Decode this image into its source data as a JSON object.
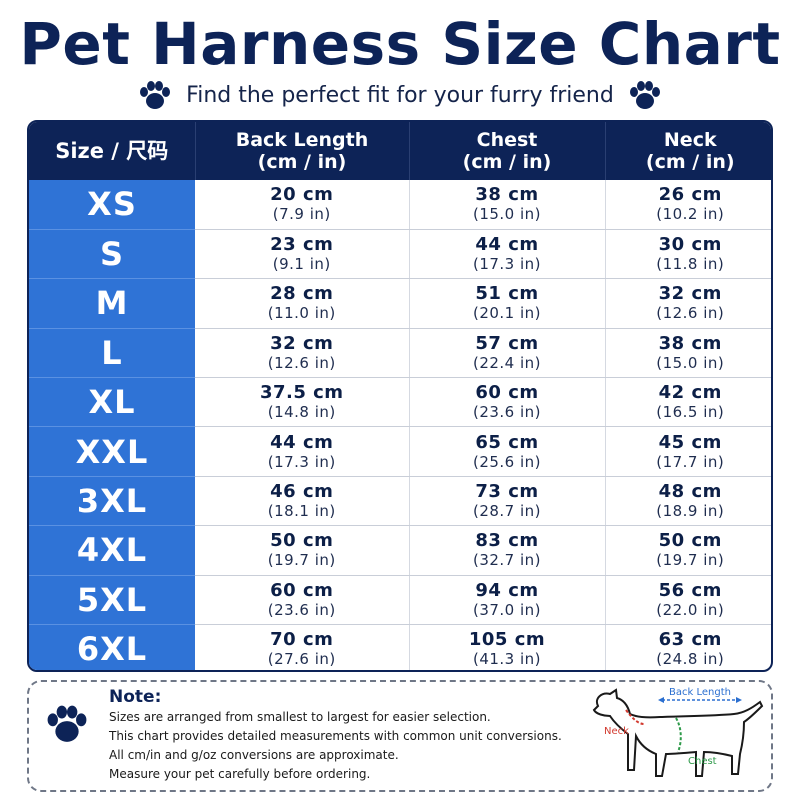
{
  "header": {
    "title": "Pet Harness Size Chart",
    "subtitle": "Find the perfect fit for your furry friend",
    "icon": "paw-icon"
  },
  "table": {
    "columns": [
      "Size / 尺码",
      "Back Length\n(cm / in)",
      "Chest\n(cm / in)",
      "Neck\n(cm / in)"
    ],
    "col_back": "Back Length",
    "col_chest": "Chest",
    "col_neck": "Neck",
    "col_unit": "(cm / in)",
    "col_size": "Size / 尺码",
    "rows": [
      {
        "size": "XS",
        "back_cm": "20 cm",
        "back_in": "(7.9 in)",
        "chest_cm": "38 cm",
        "chest_in": "(15.0 in)",
        "neck_cm": "26 cm",
        "neck_in": "(10.2 in)"
      },
      {
        "size": "S",
        "back_cm": "23 cm",
        "back_in": "(9.1 in)",
        "chest_cm": "44 cm",
        "chest_in": "(17.3 in)",
        "neck_cm": "30 cm",
        "neck_in": "(11.8 in)"
      },
      {
        "size": "M",
        "back_cm": "28 cm",
        "back_in": "(11.0 in)",
        "chest_cm": "51 cm",
        "chest_in": "(20.1 in)",
        "neck_cm": "32 cm",
        "neck_in": "(12.6 in)"
      },
      {
        "size": "L",
        "back_cm": "32 cm",
        "back_in": "(12.6 in)",
        "chest_cm": "57 cm",
        "chest_in": "(22.4 in)",
        "neck_cm": "38 cm",
        "neck_in": "(15.0 in)"
      },
      {
        "size": "XL",
        "back_cm": "37.5 cm",
        "back_in": "(14.8 in)",
        "chest_cm": "60 cm",
        "chest_in": "(23.6 in)",
        "neck_cm": "42 cm",
        "neck_in": "(16.5 in)"
      },
      {
        "size": "XXL",
        "back_cm": "44 cm",
        "back_in": "(17.3 in)",
        "chest_cm": "65 cm",
        "chest_in": "(25.6 in)",
        "neck_cm": "45 cm",
        "neck_in": "(17.7 in)"
      },
      {
        "size": "3XL",
        "back_cm": "46 cm",
        "back_in": "(18.1 in)",
        "chest_cm": "73 cm",
        "chest_in": "(28.7 in)",
        "neck_cm": "48 cm",
        "neck_in": "(18.9 in)"
      },
      {
        "size": "4XL",
        "back_cm": "50 cm",
        "back_in": "(19.7 in)",
        "chest_cm": "83 cm",
        "chest_in": "(32.7 in)",
        "neck_cm": "50 cm",
        "neck_in": "(19.7 in)"
      },
      {
        "size": "5XL",
        "back_cm": "60 cm",
        "back_in": "(23.6 in)",
        "chest_cm": "94 cm",
        "chest_in": "(37.0 in)",
        "neck_cm": "56 cm",
        "neck_in": "(22.0 in)"
      },
      {
        "size": "6XL",
        "back_cm": "70 cm",
        "back_in": "(27.6 in)",
        "chest_cm": "105 cm",
        "chest_in": "(41.3 in)",
        "neck_cm": "63 cm",
        "neck_in": "(24.8 in)"
      }
    ]
  },
  "note": {
    "title": "Note:",
    "lines": [
      "Sizes are arranged from smallest to largest for easier selection.",
      "This chart provides detailed measurements with common unit conversions.",
      "All cm/in and g/oz conversions are approximate.",
      "Measure your pet carefully before ordering."
    ],
    "icon": "paw-icon"
  },
  "diagram": {
    "back_label": "Back Length",
    "neck_label": "Neck",
    "chest_label": "Chest",
    "icon": "dog-silhouette-icon"
  },
  "colors": {
    "navy": "#0d2357",
    "size_blue": "#2f73d6",
    "neck_red": "#d23a2f",
    "chest_green": "#2e9a4a",
    "back_blue": "#2b6fd0"
  }
}
